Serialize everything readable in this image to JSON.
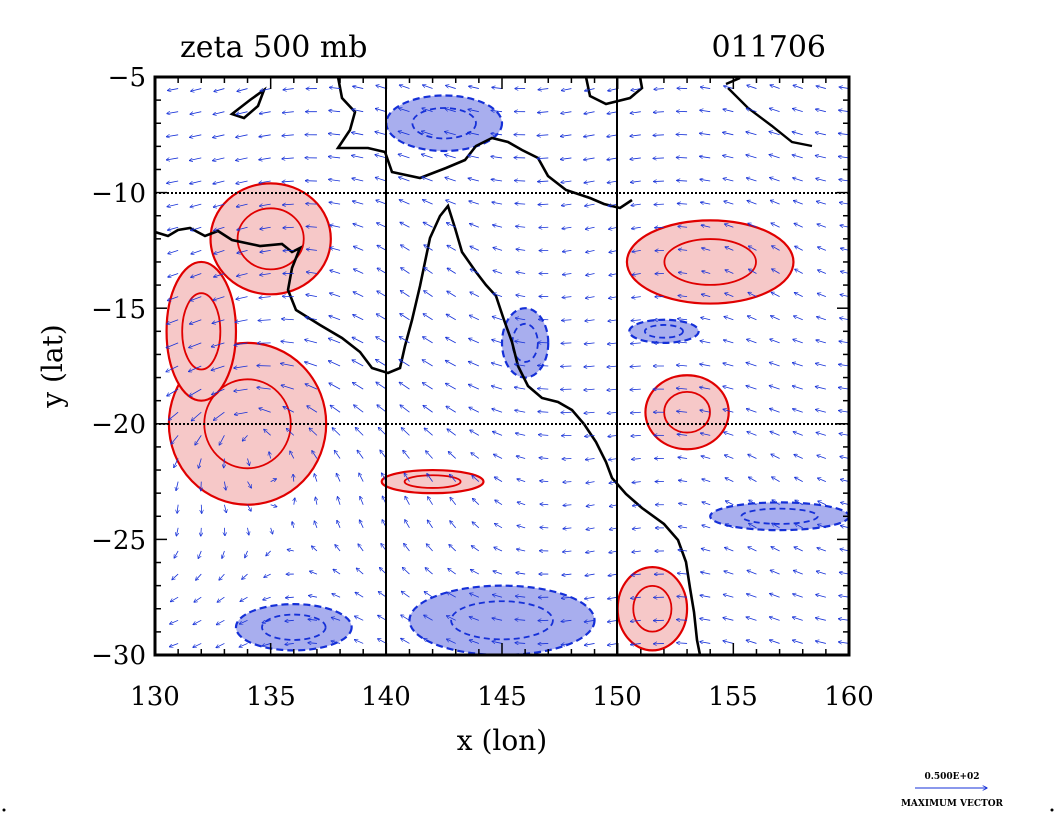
{
  "chart_data": {
    "type": "contour",
    "title_left": "zeta 500 mb",
    "title_right": "011706",
    "xlabel": "x (lon)",
    "ylabel": "y (lat)",
    "xlim": [
      130,
      160
    ],
    "ylim": [
      -30,
      -5
    ],
    "xticks": [
      "130",
      "135",
      "140",
      "145",
      "150",
      "155",
      "160"
    ],
    "yticks": [
      "−5",
      "−10",
      "−15",
      "−20",
      "−25",
      "−30"
    ],
    "grid_lon": [
      140,
      150
    ],
    "grid_lat": [
      -10,
      -20
    ],
    "vector_legend": {
      "value": "0.500E+02",
      "label": "MAXIMUM VECTOR"
    },
    "colors": {
      "positive_line": "#e00000",
      "positive_fill": "#f6c8c8",
      "negative_line": "#1530d8",
      "negative_fill": "#a8aeee",
      "coast": "#000000",
      "vectors": "#1530d8"
    },
    "positive_regions": [
      {
        "center": [
          135,
          -12
        ],
        "radius": [
          2.6,
          2.4
        ]
      },
      {
        "center": [
          134,
          -20
        ],
        "radius": [
          3.4,
          3.5
        ]
      },
      {
        "center": [
          132,
          -16
        ],
        "radius": [
          1.5,
          3.0
        ]
      },
      {
        "center": [
          154,
          -13
        ],
        "radius": [
          3.6,
          1.8
        ]
      },
      {
        "center": [
          153,
          -19.5
        ],
        "radius": [
          1.8,
          1.6
        ]
      },
      {
        "center": [
          151.5,
          -28
        ],
        "radius": [
          1.5,
          1.8
        ]
      },
      {
        "center": [
          142,
          -22.5
        ],
        "radius": [
          2.2,
          0.5
        ]
      }
    ],
    "negative_regions": [
      {
        "center": [
          145,
          -28.5
        ],
        "radius": [
          4.0,
          1.5
        ]
      },
      {
        "center": [
          136,
          -28.8
        ],
        "radius": [
          2.5,
          1.0
        ]
      },
      {
        "center": [
          142.5,
          -7
        ],
        "radius": [
          2.5,
          1.2
        ]
      },
      {
        "center": [
          152,
          -16
        ],
        "radius": [
          1.5,
          0.5
        ]
      },
      {
        "center": [
          157,
          -24
        ],
        "radius": [
          3.0,
          0.6
        ]
      },
      {
        "center": [
          146,
          -16.5
        ],
        "radius": [
          1.0,
          1.5
        ]
      }
    ]
  }
}
